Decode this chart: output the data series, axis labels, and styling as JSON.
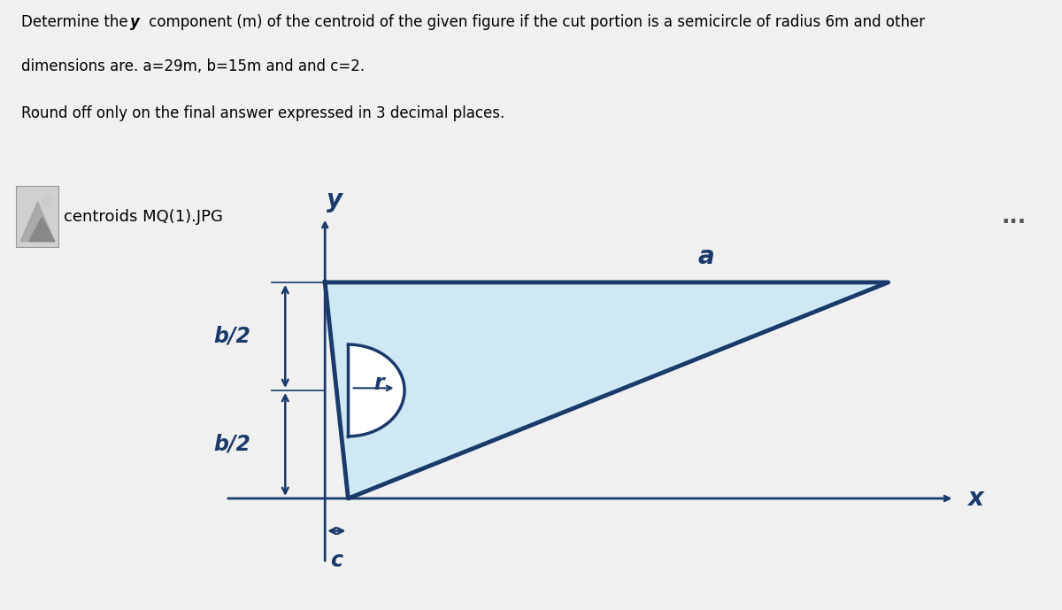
{
  "title_line1": "Determine the y component (m) of the centroid of the given figure if the cut portion is a semicircle of radius 6m and other",
  "title_line2": "dimensions are. a=29m, b=15m and and c=2.",
  "title_line3": "Round off only on the final answer expressed in 3 decimal places.",
  "subtitle": "centroids MQ(1).JPG",
  "background_color": "#f0f0f0",
  "panel_background": "#ffffff",
  "fill_color": "#add8e6",
  "fill_color_light": "#c8e8f5",
  "outline_color": "#1a3a6b",
  "axis_color": "#1a3a6b",
  "label_color": "#1a3a6b",
  "text_color": "#000000",
  "figsize": [
    12.0,
    6.89
  ],
  "dpi": 100,
  "a_label": "a",
  "b2_label_top": "b/2",
  "b2_label_bot": "b/2",
  "c_label": "c",
  "r_label": "r",
  "x_label": "x",
  "y_label": "y"
}
